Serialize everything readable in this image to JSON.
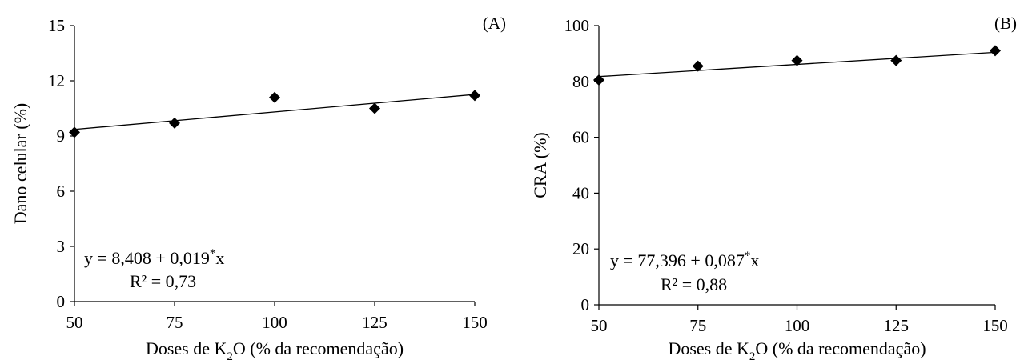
{
  "chart_data": [
    {
      "type": "scatter",
      "panel_label": "(A)",
      "x": [
        50,
        75,
        100,
        125,
        150
      ],
      "y": [
        9.2,
        9.7,
        11.1,
        10.5,
        11.2
      ],
      "trendline": {
        "intercept": 8.408,
        "slope": 0.019
      },
      "equation": "y = 8,408 + 0,019",
      "equation_sup": "*",
      "equation_tail": "x",
      "r2": "R² = 0,73",
      "xlabel_pre": "Doses de K",
      "xlabel_sub": "2",
      "xlabel_post": "O (% da recomendação)",
      "ylabel": "Dano celular  (%)",
      "xlim": [
        50,
        150
      ],
      "ylim": [
        0,
        15
      ],
      "xticks": [
        "50",
        "75",
        "100",
        "125",
        "150"
      ],
      "yticks": [
        "0",
        "3",
        "6",
        "9",
        "12",
        "15"
      ],
      "grid": false,
      "color": "#000000"
    },
    {
      "type": "scatter",
      "panel_label": "(B)",
      "x": [
        50,
        75,
        100,
        125,
        150
      ],
      "y": [
        80.5,
        85.5,
        87.5,
        87.5,
        91
      ],
      "trendline": {
        "intercept": 77.396,
        "slope": 0.087
      },
      "equation": "y = 77,396 + 0,087",
      "equation_sup": "*",
      "equation_tail": "x",
      "r2": "R² = 0,88",
      "xlabel_pre": "Doses de K",
      "xlabel_sub": "2",
      "xlabel_post": "O (% da recomendação)",
      "ylabel": "CRA (%)",
      "xlim": [
        50,
        150
      ],
      "ylim": [
        0,
        100
      ],
      "xticks": [
        "50",
        "75",
        "100",
        "125",
        "150"
      ],
      "yticks": [
        "0",
        "20",
        "40",
        "60",
        "80",
        "100"
      ],
      "grid": false,
      "color": "#000000"
    }
  ]
}
